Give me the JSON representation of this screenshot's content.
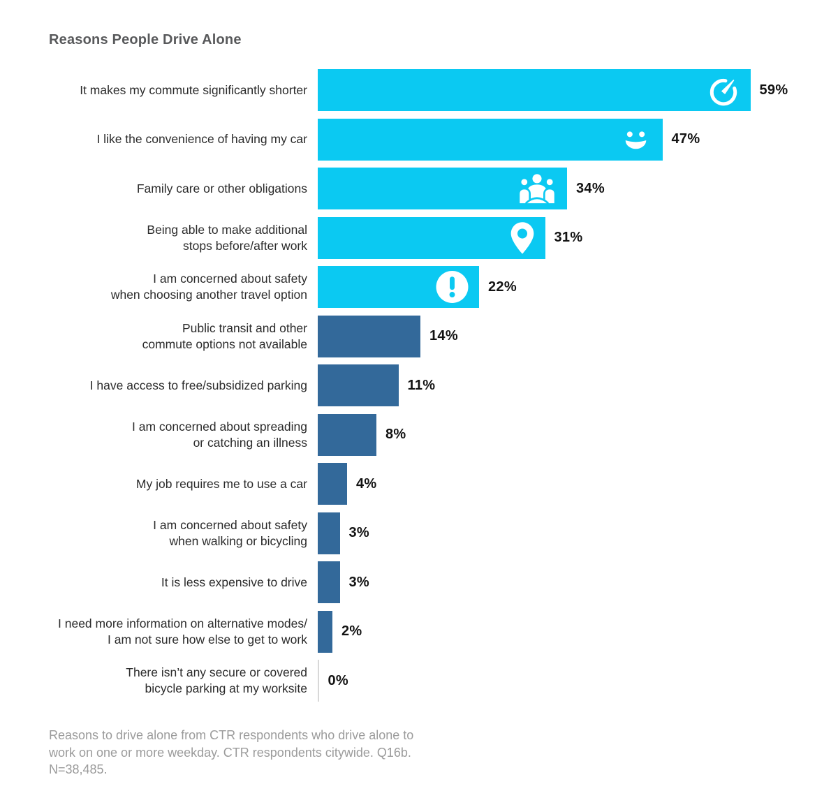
{
  "page": {
    "background": "#FFFFFF"
  },
  "chart_data": {
    "type": "bar",
    "orientation": "horizontal",
    "title": "Reasons People Drive Alone",
    "xlabel": "",
    "ylabel": "",
    "unit": "%",
    "xlim": [
      0,
      62
    ],
    "grid": false,
    "legend": false,
    "colors": {
      "primary_bar": "#0BC9F2",
      "secondary_bar": "#33699A",
      "zero_line": "#D8D8D8",
      "icon": "#FFFFFF",
      "title_text": "#58595B",
      "label_text": "#2B2B2B",
      "value_text": "#131313",
      "footnote_text": "#9B9B9B"
    },
    "rows": [
      {
        "label": "It makes my commute significantly shorter",
        "value": 59,
        "value_label": "59%",
        "color": "primary",
        "icon": "speedometer-icon"
      },
      {
        "label": "I like the convenience of having my car",
        "value": 47,
        "value_label": "47%",
        "color": "primary",
        "icon": "smiley-face-icon"
      },
      {
        "label": "Family care or other obligations",
        "value": 34,
        "value_label": "34%",
        "color": "primary",
        "icon": "people-group-icon"
      },
      {
        "label": "Being able to make additional\nstops before/after work",
        "value": 31,
        "value_label": "31%",
        "color": "primary",
        "icon": "location-pin-icon"
      },
      {
        "label": "I am concerned about safety\nwhen choosing another travel option",
        "value": 22,
        "value_label": "22%",
        "color": "primary",
        "icon": "alert-exclamation-icon"
      },
      {
        "label": "Public transit and other\ncommute options not available",
        "value": 14,
        "value_label": "14%",
        "color": "secondary",
        "icon": null
      },
      {
        "label": "I have access to free/subsidized parking",
        "value": 11,
        "value_label": "11%",
        "color": "secondary",
        "icon": null
      },
      {
        "label": "I am concerned about spreading\nor catching an illness",
        "value": 8,
        "value_label": "8%",
        "color": "secondary",
        "icon": null
      },
      {
        "label": "My job requires me to use a car",
        "value": 4,
        "value_label": "4%",
        "color": "secondary",
        "icon": null
      },
      {
        "label": "I am concerned about safety\nwhen walking or bicycling",
        "value": 3,
        "value_label": "3%",
        "color": "secondary",
        "icon": null
      },
      {
        "label": "It is less expensive to drive",
        "value": 3,
        "value_label": "3%",
        "color": "secondary",
        "icon": null
      },
      {
        "label": "I need more information on alternative modes/\nI am not sure how else to get to work",
        "value": 2,
        "value_label": "2%",
        "color": "secondary",
        "icon": null
      },
      {
        "label": "There isn’t any secure or covered\nbicycle parking at my worksite",
        "value": 0,
        "value_label": "0%",
        "color": "zero",
        "icon": null
      }
    ],
    "footnote": "Reasons to drive alone from CTR respondents who drive alone to\nwork on one or more weekday. CTR respondents citywide. Q16b.\nN=38,485."
  }
}
